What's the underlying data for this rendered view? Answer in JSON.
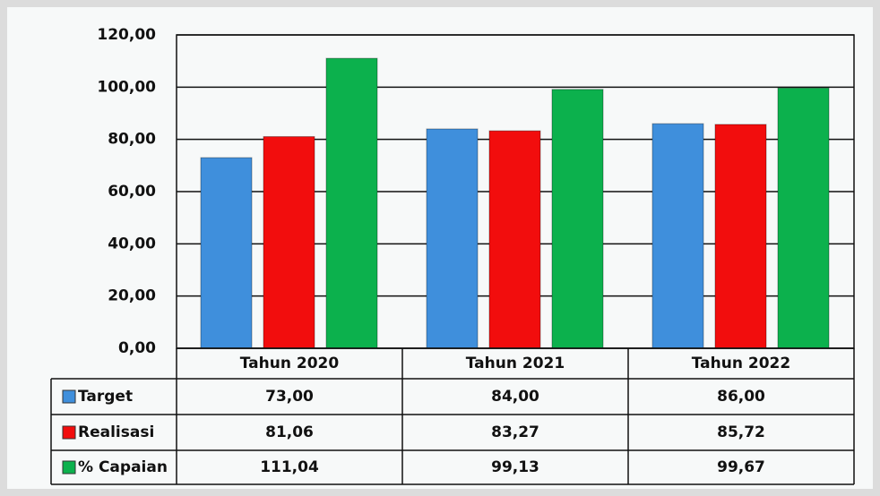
{
  "chart_data": {
    "type": "bar",
    "categories": [
      "Tahun 2020",
      "Tahun 2021",
      "Tahun 2022"
    ],
    "series": [
      {
        "name": "Target",
        "color": "#3f8fdc",
        "values": [
          73,
          84,
          86
        ],
        "value_labels": [
          "73,00",
          "84,00",
          "86,00"
        ]
      },
      {
        "name": "Realisasi",
        "color": "#f20d0d",
        "values": [
          81.06,
          83.27,
          85.72
        ],
        "value_labels": [
          "81,06",
          "83,27",
          "85,72"
        ]
      },
      {
        "name": "% Capaian",
        "color": "#0cb14d",
        "values": [
          111.04,
          99.13,
          99.67
        ],
        "value_labels": [
          "111,04",
          "99,13",
          "99,67"
        ]
      }
    ],
    "ylim": [
      0,
      120
    ],
    "yticks": [
      {
        "value": 0,
        "label": "0,00"
      },
      {
        "value": 20,
        "label": "20,00"
      },
      {
        "value": 40,
        "label": "40,00"
      },
      {
        "value": 60,
        "label": "60,00"
      },
      {
        "value": 80,
        "label": "80,00"
      },
      {
        "value": 100,
        "label": "100,00"
      },
      {
        "value": 120,
        "label": "120,00"
      }
    ],
    "grid": true
  }
}
